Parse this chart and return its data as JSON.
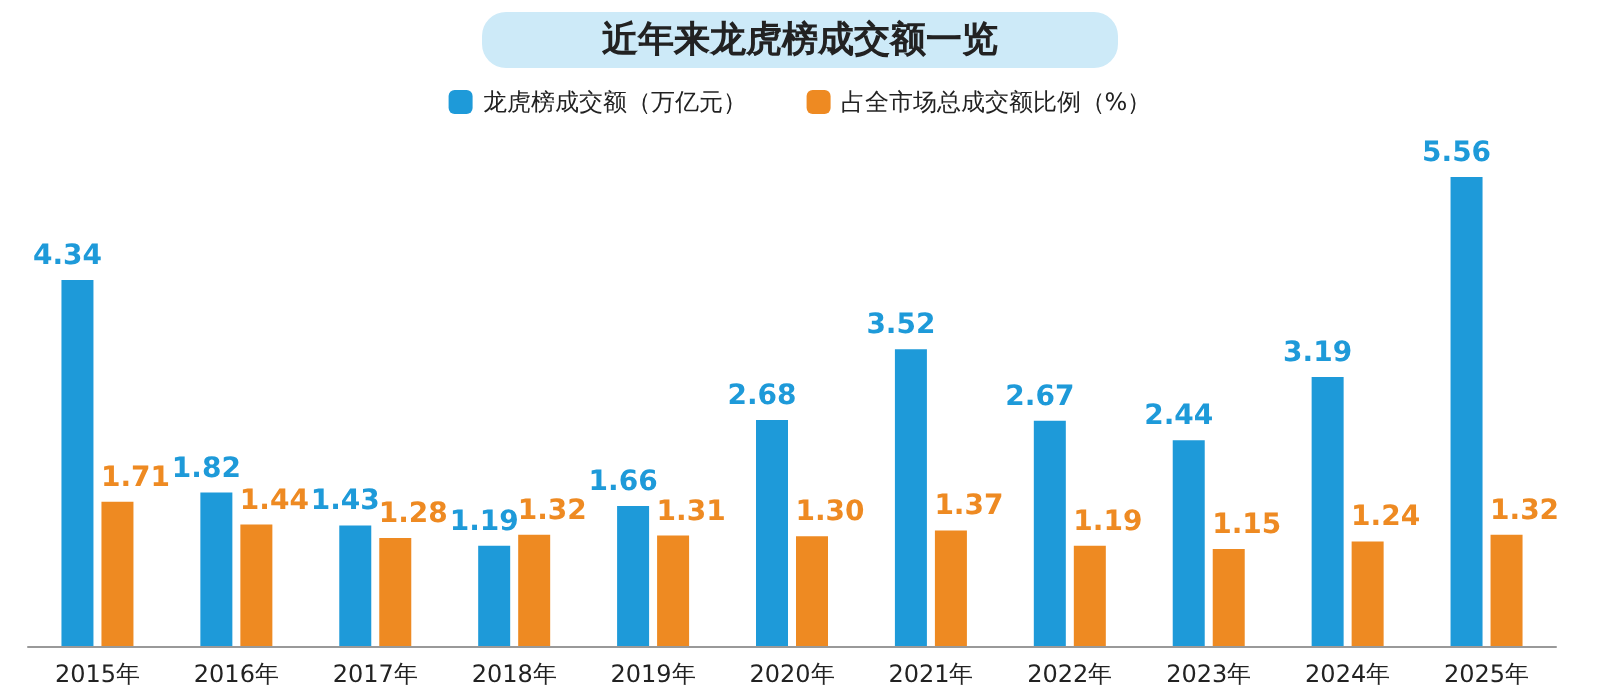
{
  "chart_data": {
    "type": "bar",
    "title": "近年来龙虎榜成交额一览",
    "categories": [
      "2015年",
      "2016年",
      "2017年",
      "2018年",
      "2019年",
      "2020年",
      "2021年",
      "2022年",
      "2023年",
      "2024年",
      "2025年"
    ],
    "series": [
      {
        "name": "龙虎榜成交额（万亿元）",
        "color": "#1e9ad9",
        "values": [
          4.34,
          1.82,
          1.43,
          1.19,
          1.66,
          2.68,
          3.52,
          2.67,
          2.44,
          3.19,
          5.56
        ]
      },
      {
        "name": "占全市场总成交额比例（%）",
        "color": "#ee8a22",
        "values": [
          1.71,
          1.44,
          1.28,
          1.32,
          1.31,
          1.3,
          1.37,
          1.19,
          1.15,
          1.24,
          1.32
        ],
        "value_labels": [
          "1.71",
          "1.44",
          "1.28",
          "1.32",
          "1.31",
          "1.30",
          "1.37",
          "1.19",
          "1.15",
          "1.24",
          "1.32"
        ]
      }
    ],
    "data_labels": true,
    "legend": "top"
  }
}
